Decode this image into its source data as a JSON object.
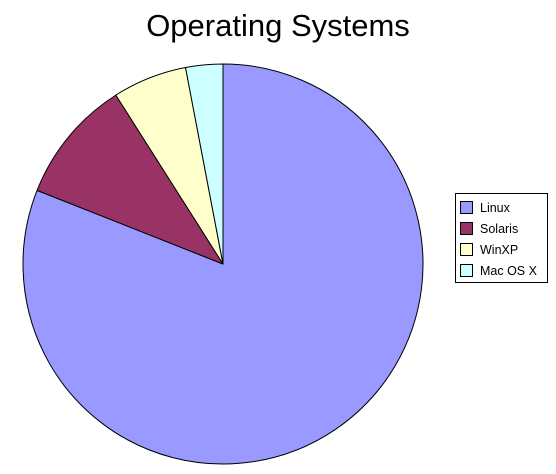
{
  "chart_data": {
    "type": "pie",
    "title": "Operating Systems",
    "categories": [
      "Linux",
      "Solaris",
      "WinXP",
      "Mac OS X"
    ],
    "values": [
      81,
      10,
      6,
      3
    ],
    "colors": [
      "#9999ff",
      "#993366",
      "#ffffcc",
      "#ccffff"
    ],
    "start_angle_deg": 0,
    "direction": "clockwise",
    "legend_position": "right"
  }
}
